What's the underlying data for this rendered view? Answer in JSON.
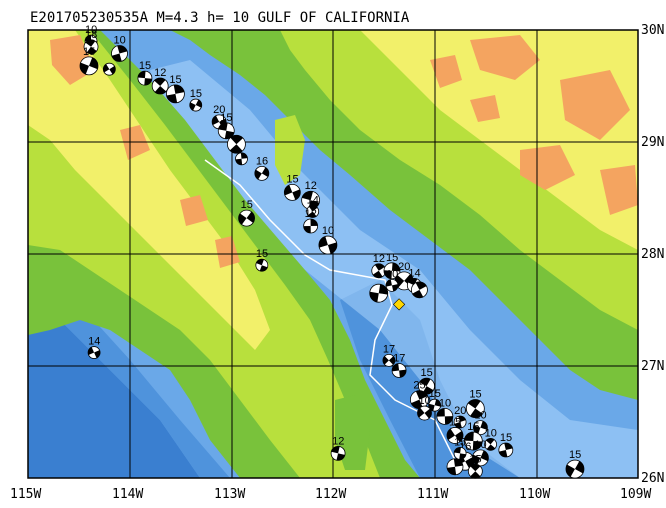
{
  "map": {
    "title": "E201705230535A  M=4.3  h= 10 GULF OF CALIFORNIA",
    "lon_labels": [
      "115W",
      "114W",
      "113W",
      "112W",
      "111W",
      "110W",
      "109W"
    ],
    "lat_labels": [
      "30N",
      "29N",
      "28N",
      "27N",
      "26N"
    ],
    "lon_range": [
      -115,
      -109
    ],
    "lat_range": [
      26,
      30
    ],
    "main_event": {
      "lon": -111.35,
      "lat": 27.55,
      "color": "#ffd700"
    },
    "events": [
      {
        "lon": -114.38,
        "lat": 29.9,
        "label": "10"
      },
      {
        "lon": -114.38,
        "lat": 29.85,
        "label": "18"
      },
      {
        "lon": -114.1,
        "lat": 29.79,
        "label": "10"
      },
      {
        "lon": -114.4,
        "lat": 29.68,
        "label": "15"
      },
      {
        "lon": -114.2,
        "lat": 29.65,
        "label": ""
      },
      {
        "lon": -113.85,
        "lat": 29.57,
        "label": "15"
      },
      {
        "lon": -113.7,
        "lat": 29.5,
        "label": "12"
      },
      {
        "lon": -113.55,
        "lat": 29.43,
        "label": "15"
      },
      {
        "lon": -113.35,
        "lat": 29.33,
        "label": "15"
      },
      {
        "lon": -113.12,
        "lat": 29.18,
        "label": "20"
      },
      {
        "lon": -113.05,
        "lat": 29.1,
        "label": "15"
      },
      {
        "lon": -112.95,
        "lat": 28.98,
        "label": ""
      },
      {
        "lon": -112.9,
        "lat": 28.85,
        "label": ""
      },
      {
        "lon": -112.7,
        "lat": 28.72,
        "label": "16"
      },
      {
        "lon": -112.4,
        "lat": 28.55,
        "label": "15"
      },
      {
        "lon": -112.22,
        "lat": 28.48,
        "label": "12"
      },
      {
        "lon": -112.2,
        "lat": 28.38,
        "label": "14"
      },
      {
        "lon": -112.22,
        "lat": 28.25,
        "label": "12"
      },
      {
        "lon": -112.85,
        "lat": 28.32,
        "label": "15"
      },
      {
        "lon": -112.05,
        "lat": 28.08,
        "label": "10"
      },
      {
        "lon": -112.7,
        "lat": 27.9,
        "label": "15"
      },
      {
        "lon": -111.55,
        "lat": 27.85,
        "label": "12"
      },
      {
        "lon": -111.42,
        "lat": 27.85,
        "label": "15"
      },
      {
        "lon": -111.3,
        "lat": 27.76,
        "label": "20"
      },
      {
        "lon": -111.42,
        "lat": 27.72,
        "label": "10"
      },
      {
        "lon": -111.2,
        "lat": 27.72,
        "label": "14"
      },
      {
        "lon": -111.15,
        "lat": 27.68,
        "label": ""
      },
      {
        "lon": -111.55,
        "lat": 27.65,
        "label": ""
      },
      {
        "lon": -111.45,
        "lat": 27.05,
        "label": "17"
      },
      {
        "lon": -111.35,
        "lat": 26.96,
        "label": "17"
      },
      {
        "lon": -111.08,
        "lat": 26.82,
        "label": "15"
      },
      {
        "lon": -111.15,
        "lat": 26.7,
        "label": "25"
      },
      {
        "lon": -111.0,
        "lat": 26.65,
        "label": "15"
      },
      {
        "lon": -111.1,
        "lat": 26.58,
        "label": "10"
      },
      {
        "lon": -110.9,
        "lat": 26.55,
        "label": "10"
      },
      {
        "lon": -110.6,
        "lat": 26.62,
        "label": "15"
      },
      {
        "lon": -110.75,
        "lat": 26.5,
        "label": "20"
      },
      {
        "lon": -110.55,
        "lat": 26.45,
        "label": "10"
      },
      {
        "lon": -110.8,
        "lat": 26.38,
        "label": "15"
      },
      {
        "lon": -110.62,
        "lat": 26.33,
        "label": "15"
      },
      {
        "lon": -110.45,
        "lat": 26.3,
        "label": "10"
      },
      {
        "lon": -110.3,
        "lat": 26.25,
        "label": "15"
      },
      {
        "lon": -110.55,
        "lat": 26.18,
        "label": "10"
      },
      {
        "lon": -110.7,
        "lat": 26.15,
        "label": "16"
      },
      {
        "lon": -110.75,
        "lat": 26.22,
        "label": "15"
      },
      {
        "lon": -110.6,
        "lat": 26.06,
        "label": "15"
      },
      {
        "lon": -110.8,
        "lat": 26.1,
        "label": ""
      },
      {
        "lon": -109.62,
        "lat": 26.08,
        "label": "15"
      },
      {
        "lon": -114.35,
        "lat": 27.12,
        "label": "14"
      },
      {
        "lon": -111.95,
        "lat": 26.22,
        "label": "12"
      }
    ],
    "colors": {
      "deep_water": "#3a7fd0",
      "mid_water": "#6aa8e8",
      "shallow_water": "#a9d3fb",
      "shelf": "#c8e6ff",
      "lowland": "#79c23b",
      "midland": "#b8e03d",
      "upland": "#f2f06a",
      "highland": "#f4a460",
      "plate_boundary": "#ffffff"
    }
  }
}
